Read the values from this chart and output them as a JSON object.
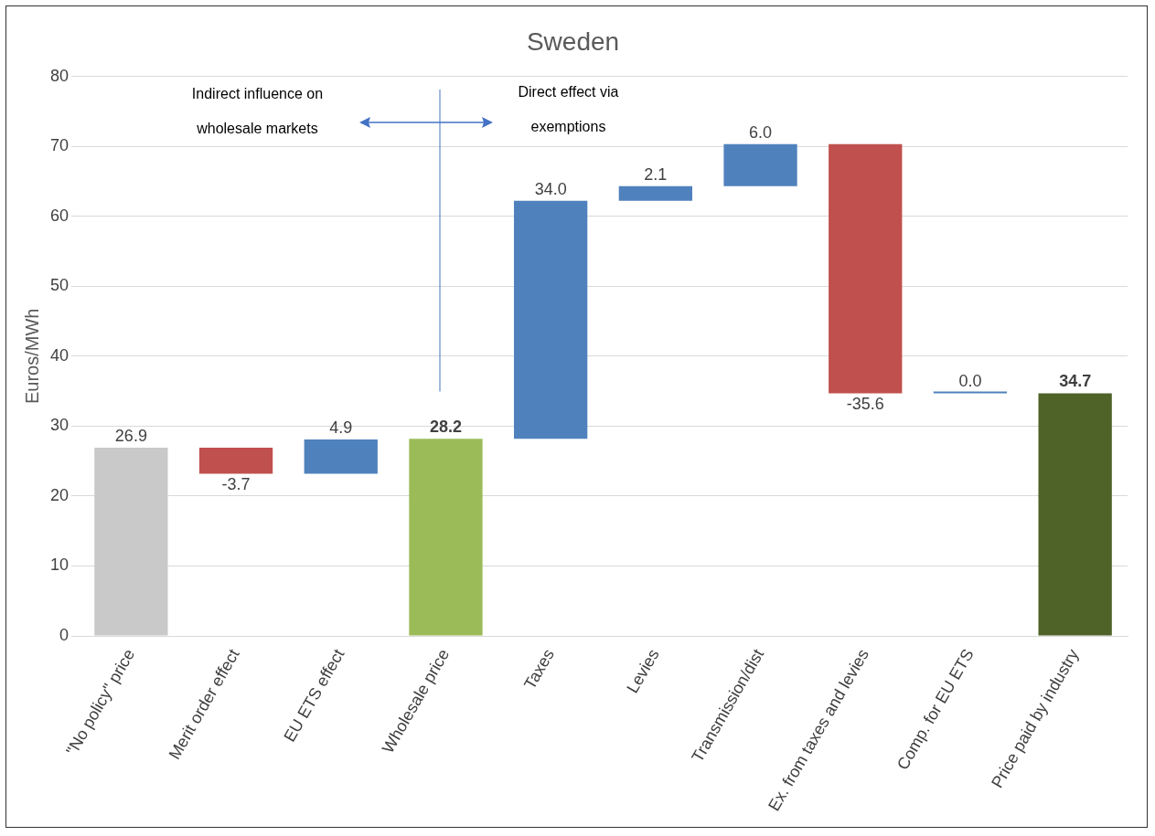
{
  "chart_data": {
    "type": "bar",
    "title": "Sweden",
    "ylabel": "Euros/MWh",
    "categories": [
      "\"No policy\" price",
      "Merit order effect",
      "EU ETS effect",
      "Wholesale price",
      "Taxes",
      "Levies",
      "Transmission/dist",
      "Ex. from taxes and levies",
      "Comp. for EU ETS",
      "Price paid by industry"
    ],
    "values": [
      26.9,
      -3.7,
      4.9,
      28.2,
      34.0,
      2.1,
      6.0,
      -35.6,
      0.0,
      34.7
    ],
    "base": [
      0,
      26.9,
      23.2,
      0,
      28.2,
      62.2,
      64.3,
      70.3,
      34.7,
      0
    ],
    "value_labels": [
      "26.9",
      "-3.7",
      "4.9",
      "28.2",
      "34.0",
      "2.1",
      "6.0",
      "-35.6",
      "0.0",
      "34.7"
    ],
    "colors": [
      "#c9c9c9",
      "#c0504d",
      "#4f81bd",
      "#9bbb59",
      "#4f81bd",
      "#4f81bd",
      "#4f81bd",
      "#c0504d",
      "#4f81bd",
      "#4f6228"
    ],
    "ylim": [
      0,
      80
    ],
    "yticks": [
      0,
      10,
      20,
      30,
      40,
      50,
      60,
      70,
      80
    ],
    "grid": "y",
    "legend": false,
    "annotations": [
      "Indirect influence on wholesale markets",
      "Direct effect via exemptions"
    ]
  }
}
